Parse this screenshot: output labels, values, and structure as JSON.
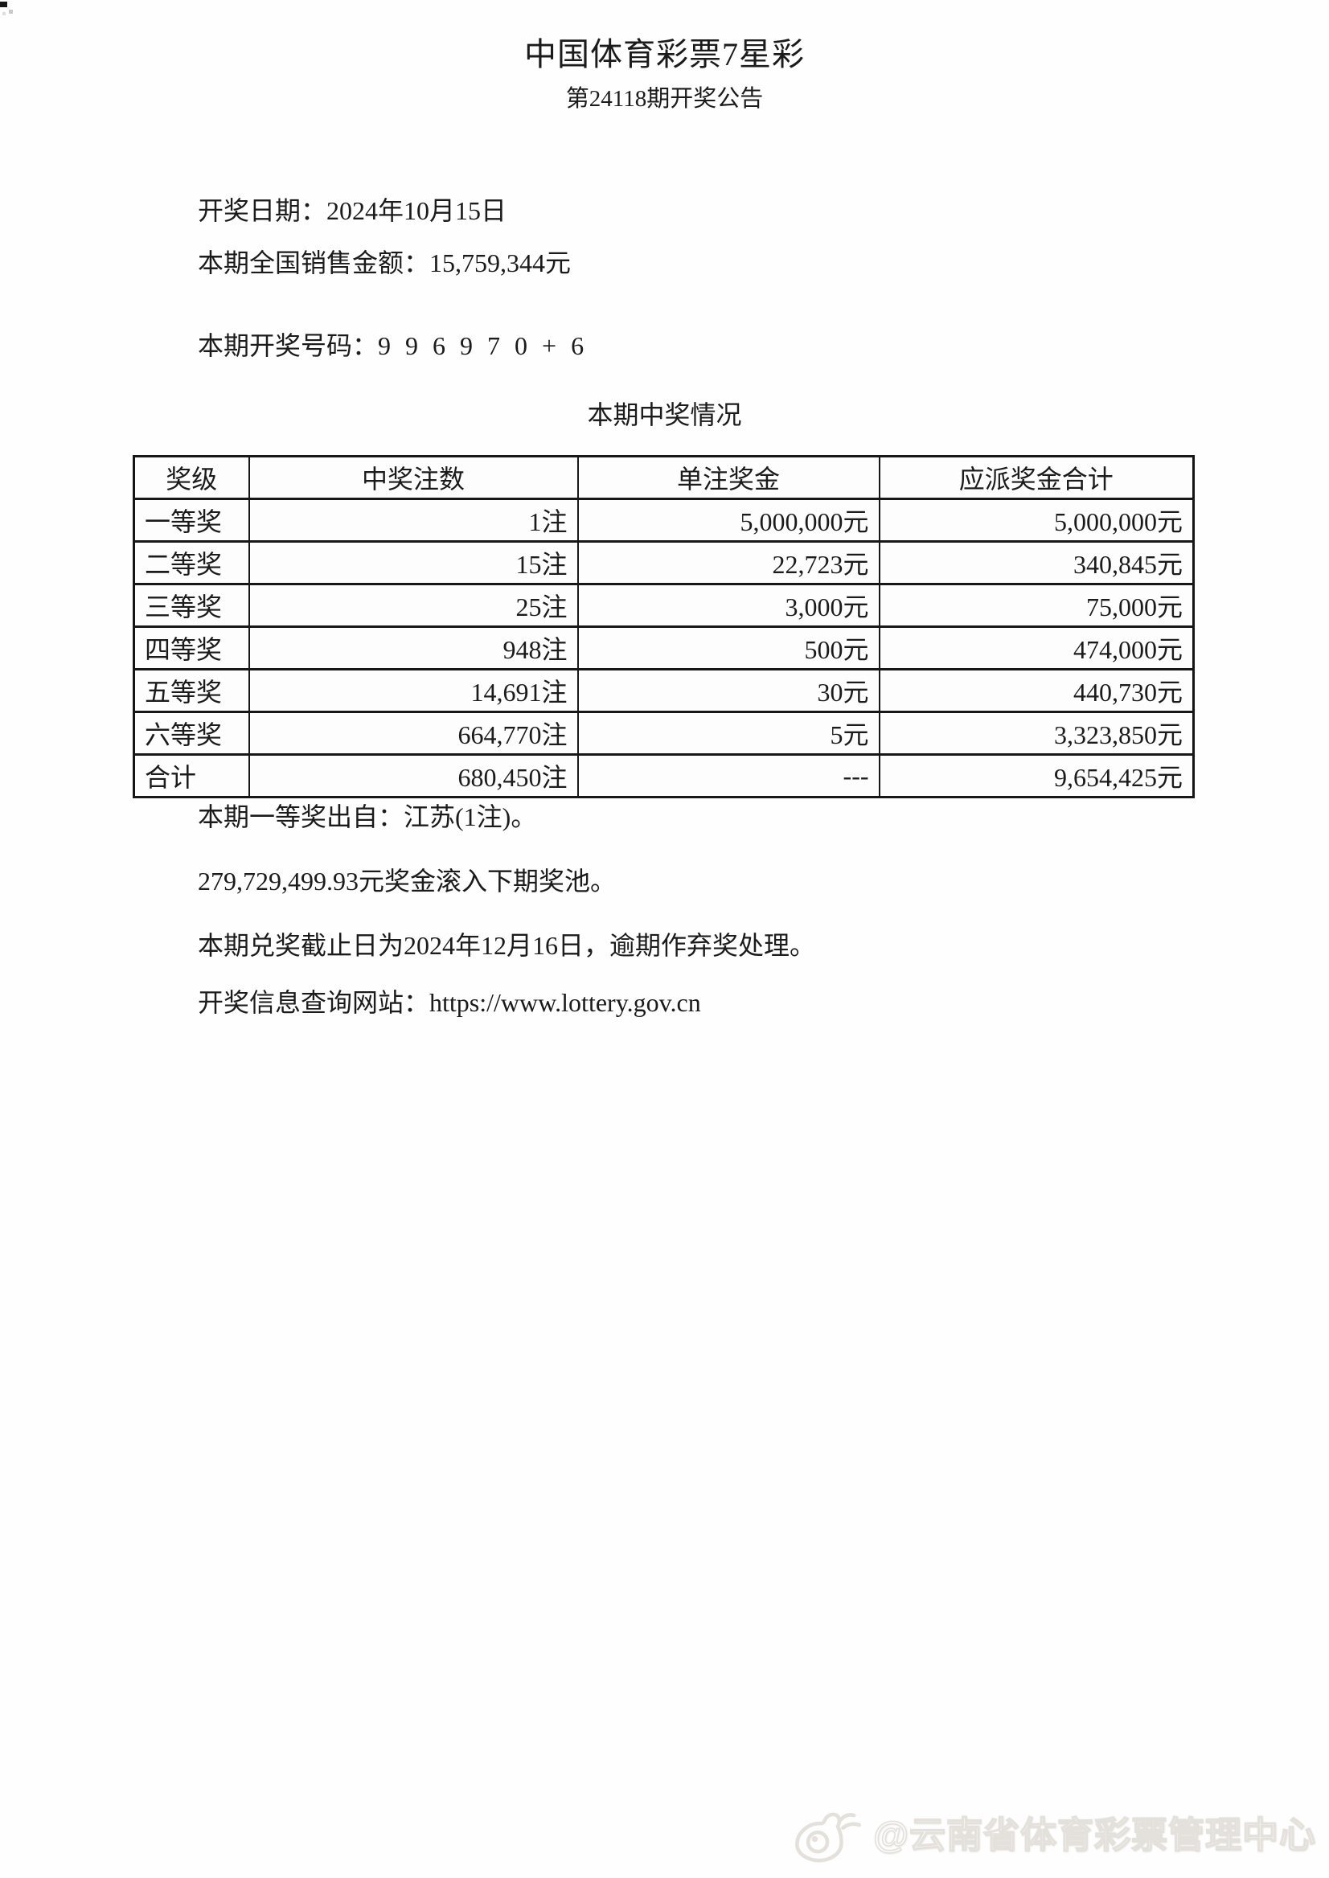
{
  "page": {
    "title": "中国体育彩票7星彩",
    "subtitle": "第24118期开奖公告",
    "draw_date_line": "开奖日期：2024年10月15日",
    "sales_line": "本期全国销售金额：15,759,344元",
    "numbers_label": "本期开奖号码：",
    "numbers": "9 9 6 9 7 0 + 6",
    "section_title": "本期中奖情况"
  },
  "table": {
    "headers": [
      "奖级",
      "中奖注数",
      "单注奖金",
      "应派奖金合计"
    ],
    "rows": [
      [
        "一等奖",
        "1注",
        "5,000,000元",
        "5,000,000元"
      ],
      [
        "二等奖",
        "15注",
        "22,723元",
        "340,845元"
      ],
      [
        "三等奖",
        "25注",
        "3,000元",
        "75,000元"
      ],
      [
        "四等奖",
        "948注",
        "500元",
        "474,000元"
      ],
      [
        "五等奖",
        "14,691注",
        "30元",
        "440,730元"
      ],
      [
        "六等奖",
        "664,770注",
        "5元",
        "3,323,850元"
      ],
      [
        "合计",
        "680,450注",
        "---",
        "9,654,425元"
      ]
    ]
  },
  "notes": [
    "本期一等奖出自：江苏(1注)。",
    "279,729,499.93元奖金滚入下期奖池。",
    "本期兑奖截止日为2024年12月16日，逾期作弃奖处理。",
    "开奖信息查询网站：https://www.lottery.gov.cn"
  ],
  "watermark": {
    "handle": "@云南省体育彩票管理中心",
    "icon": "weibo-icon",
    "color": "#e4e1dc"
  }
}
